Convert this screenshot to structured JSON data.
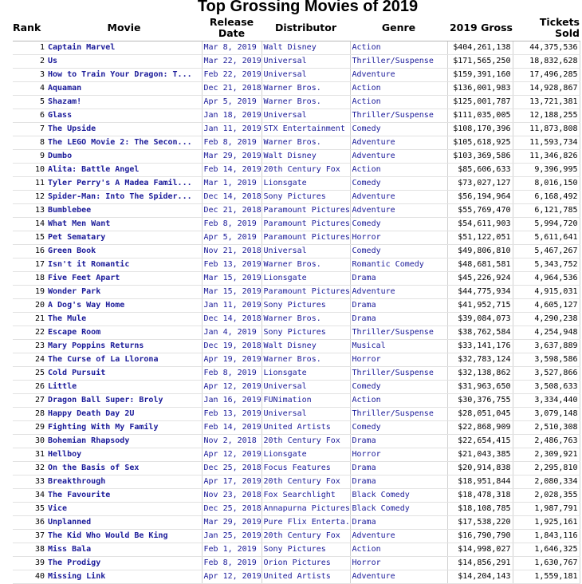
{
  "title": "Top Grossing Movies of 2019",
  "columns": [
    "Rank",
    "Movie",
    "Release Date",
    "Distributor",
    "Genre",
    "2019 Gross",
    "Tickets Sold"
  ],
  "rows": [
    [
      "1",
      "Captain Marvel",
      "Mar 8, 2019",
      "Walt Disney",
      "Action",
      "$404,261,138",
      "44,375,536"
    ],
    [
      "2",
      "Us",
      "Mar 22, 2019",
      "Universal",
      "Thriller/Suspense",
      "$171,565,250",
      "18,832,628"
    ],
    [
      "3",
      "How to Train Your Dragon: T...",
      "Feb 22, 2019",
      "Universal",
      "Adventure",
      "$159,391,160",
      "17,496,285"
    ],
    [
      "4",
      "Aquaman",
      "Dec 21, 2018",
      "Warner Bros.",
      "Action",
      "$136,001,983",
      "14,928,867"
    ],
    [
      "5",
      "Shazam!",
      "Apr 5, 2019",
      "Warner Bros.",
      "Action",
      "$125,001,787",
      "13,721,381"
    ],
    [
      "6",
      "Glass",
      "Jan 18, 2019",
      "Universal",
      "Thriller/Suspense",
      "$111,035,005",
      "12,188,255"
    ],
    [
      "7",
      "The Upside",
      "Jan 11, 2019",
      "STX Entertainment",
      "Comedy",
      "$108,170,396",
      "11,873,808"
    ],
    [
      "8",
      "The LEGO Movie 2: The Secon...",
      "Feb 8, 2019",
      "Warner Bros.",
      "Adventure",
      "$105,618,925",
      "11,593,734"
    ],
    [
      "9",
      "Dumbo",
      "Mar 29, 2019",
      "Walt Disney",
      "Adventure",
      "$103,369,586",
      "11,346,826"
    ],
    [
      "10",
      "Alita: Battle Angel",
      "Feb 14, 2019",
      "20th Century Fox",
      "Action",
      "$85,606,633",
      "9,396,995"
    ],
    [
      "11",
      "Tyler Perry's A Madea Famil...",
      "Mar 1, 2019",
      "Lionsgate",
      "Comedy",
      "$73,027,127",
      "8,016,150"
    ],
    [
      "12",
      "Spider-Man: Into The Spider...",
      "Dec 14, 2018",
      "Sony Pictures",
      "Adventure",
      "$56,194,964",
      "6,168,492"
    ],
    [
      "13",
      "Bumblebee",
      "Dec 21, 2018",
      "Paramount Pictures",
      "Adventure",
      "$55,769,470",
      "6,121,785"
    ],
    [
      "14",
      "What Men Want",
      "Feb 8, 2019",
      "Paramount Pictures",
      "Comedy",
      "$54,611,903",
      "5,994,720"
    ],
    [
      "15",
      "Pet Sematary",
      "Apr 5, 2019",
      "Paramount Pictures",
      "Horror",
      "$51,122,051",
      "5,611,641"
    ],
    [
      "16",
      "Green Book",
      "Nov 21, 2018",
      "Universal",
      "Comedy",
      "$49,806,810",
      "5,467,267"
    ],
    [
      "17",
      "Isn't it Romantic",
      "Feb 13, 2019",
      "Warner Bros.",
      "Romantic Comedy",
      "$48,681,581",
      "5,343,752"
    ],
    [
      "18",
      "Five Feet Apart",
      "Mar 15, 2019",
      "Lionsgate",
      "Drama",
      "$45,226,924",
      "4,964,536"
    ],
    [
      "19",
      "Wonder Park",
      "Mar 15, 2019",
      "Paramount Pictures",
      "Adventure",
      "$44,775,934",
      "4,915,031"
    ],
    [
      "20",
      "A Dog's Way Home",
      "Jan 11, 2019",
      "Sony Pictures",
      "Drama",
      "$41,952,715",
      "4,605,127"
    ],
    [
      "21",
      "The Mule",
      "Dec 14, 2018",
      "Warner Bros.",
      "Drama",
      "$39,084,073",
      "4,290,238"
    ],
    [
      "22",
      "Escape Room",
      "Jan 4, 2019",
      "Sony Pictures",
      "Thriller/Suspense",
      "$38,762,584",
      "4,254,948"
    ],
    [
      "23",
      "Mary Poppins Returns",
      "Dec 19, 2018",
      "Walt Disney",
      "Musical",
      "$33,141,176",
      "3,637,889"
    ],
    [
      "24",
      "The Curse of La Llorona",
      "Apr 19, 2019",
      "Warner Bros.",
      "Horror",
      "$32,783,124",
      "3,598,586"
    ],
    [
      "25",
      "Cold Pursuit",
      "Feb 8, 2019",
      "Lionsgate",
      "Thriller/Suspense",
      "$32,138,862",
      "3,527,866"
    ],
    [
      "26",
      "Little",
      "Apr 12, 2019",
      "Universal",
      "Comedy",
      "$31,963,650",
      "3,508,633"
    ],
    [
      "27",
      "Dragon Ball Super: Broly",
      "Jan 16, 2019",
      "FUNimation",
      "Action",
      "$30,376,755",
      "3,334,440"
    ],
    [
      "28",
      "Happy Death Day 2U",
      "Feb 13, 2019",
      "Universal",
      "Thriller/Suspense",
      "$28,051,045",
      "3,079,148"
    ],
    [
      "29",
      "Fighting With My Family",
      "Feb 14, 2019",
      "United Artists",
      "Comedy",
      "$22,868,909",
      "2,510,308"
    ],
    [
      "30",
      "Bohemian Rhapsody",
      "Nov 2, 2018",
      "20th Century Fox",
      "Drama",
      "$22,654,415",
      "2,486,763"
    ],
    [
      "31",
      "Hellboy",
      "Apr 12, 2019",
      "Lionsgate",
      "Horror",
      "$21,043,385",
      "2,309,921"
    ],
    [
      "32",
      "On the Basis of Sex",
      "Dec 25, 2018",
      "Focus Features",
      "Drama",
      "$20,914,838",
      "2,295,810"
    ],
    [
      "33",
      "Breakthrough",
      "Apr 17, 2019",
      "20th Century Fox",
      "Drama",
      "$18,951,844",
      "2,080,334"
    ],
    [
      "34",
      "The Favourite",
      "Nov 23, 2018",
      "Fox Searchlight",
      "Black Comedy",
      "$18,478,318",
      "2,028,355"
    ],
    [
      "35",
      "Vice",
      "Dec 25, 2018",
      "Annapurna Pictures",
      "Black Comedy",
      "$18,108,785",
      "1,987,791"
    ],
    [
      "36",
      "Unplanned",
      "Mar 29, 2019",
      "Pure Flix Enterta...",
      "Drama",
      "$17,538,220",
      "1,925,161"
    ],
    [
      "37",
      "The Kid Who Would Be King",
      "Jan 25, 2019",
      "20th Century Fox",
      "Adventure",
      "$16,790,790",
      "1,843,116"
    ],
    [
      "38",
      "Miss Bala",
      "Feb 1, 2019",
      "Sony Pictures",
      "Action",
      "$14,998,027",
      "1,646,325"
    ],
    [
      "39",
      "The Prodigy",
      "Feb 8, 2019",
      "Orion Pictures",
      "Horror",
      "$14,856,291",
      "1,630,767"
    ],
    [
      "40",
      "Missing Link",
      "Apr 12, 2019",
      "United Artists",
      "Adventure",
      "$14,204,143",
      "1,559,181"
    ]
  ]
}
